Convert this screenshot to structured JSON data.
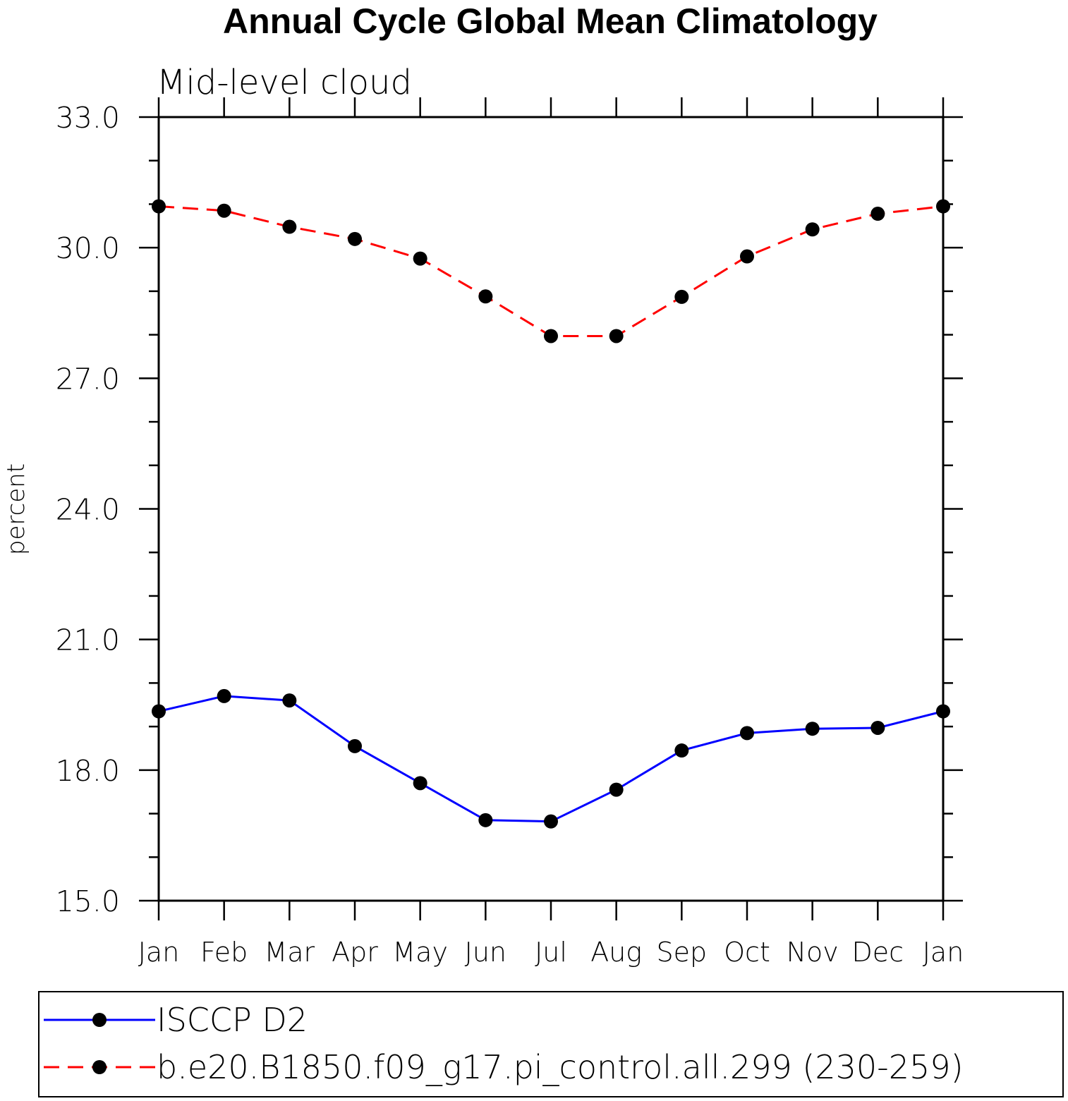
{
  "chart_data": {
    "type": "line",
    "title": "Annual Cycle Global Mean Climatology",
    "subtitle": "Mid-level cloud",
    "ylabel": "percent",
    "xlabel": "",
    "categories": [
      "Jan",
      "Feb",
      "Mar",
      "Apr",
      "May",
      "Jun",
      "Jul",
      "Aug",
      "Sep",
      "Oct",
      "Nov",
      "Dec",
      "Jan"
    ],
    "ylim": [
      15.0,
      33.0
    ],
    "yticks": [
      "15.0",
      "18.0",
      "21.0",
      "24.0",
      "27.0",
      "30.0",
      "33.0"
    ],
    "series": [
      {
        "name": "ISCCP D2",
        "color": "#0000ff",
        "dash": "solid",
        "marker": "filled-circle",
        "values": [
          19.35,
          19.7,
          19.6,
          18.55,
          17.7,
          16.85,
          16.82,
          17.55,
          18.45,
          18.85,
          18.95,
          18.97,
          19.35
        ]
      },
      {
        "name": "b.e20.B1850.f09_g17.pi_control.all.299 (230-259)",
        "color": "#ff0000",
        "dash": "dashed",
        "marker": "filled-circle",
        "values": [
          30.95,
          30.85,
          30.48,
          30.2,
          29.75,
          28.88,
          27.97,
          27.97,
          28.87,
          29.8,
          30.42,
          30.78,
          30.95
        ]
      }
    ],
    "legend_position": "bottom"
  }
}
